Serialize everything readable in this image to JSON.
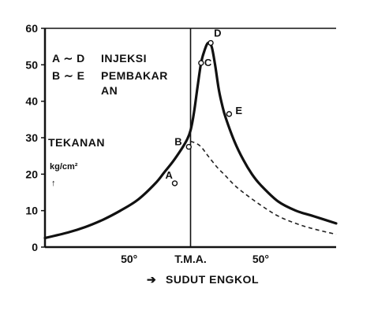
{
  "chart_data": {
    "type": "line",
    "ylim": [
      0,
      60
    ],
    "xlim": [
      -83,
      83
    ],
    "yticks": [
      0,
      10,
      20,
      30,
      40,
      50,
      60
    ],
    "xticks": [
      {
        "value": -35,
        "label": "50°"
      },
      {
        "value": 0,
        "label": "T.M.A."
      },
      {
        "value": 40,
        "label": "50°"
      }
    ],
    "xlabel": "SUDUT ENGKOL",
    "xlabel_arrow": "➔",
    "ylabel": "TEKANAN",
    "ylabel_unit": "kg/cm²",
    "ylabel_arrow": "↑",
    "reference_line_x": 0,
    "legend": [
      {
        "key": "A ∼ D",
        "text": "INJEKSI"
      },
      {
        "key": "B ∼ E",
        "text": "PEMBAKAR",
        "text2": "AN"
      }
    ],
    "series": [
      {
        "style": "solid",
        "x": [
          -83,
          -70,
          -60,
          -50,
          -40,
          -30,
          -20,
          -15,
          -10,
          -5,
          -2,
          0,
          2,
          4,
          6,
          8,
          10,
          12,
          14,
          16,
          18,
          20,
          25,
          30,
          35,
          40,
          50,
          60,
          70,
          83
        ],
        "y": [
          2.5,
          4,
          5.5,
          7.5,
          10,
          13,
          17.5,
          20.5,
          23.5,
          27,
          29.5,
          32,
          37,
          44,
          50.5,
          54,
          56,
          55,
          50,
          43.5,
          39,
          35.5,
          29,
          24,
          20,
          17,
          12.5,
          10,
          8.5,
          6.5
        ]
      },
      {
        "style": "dashed",
        "x": [
          0,
          3,
          6,
          10,
          15,
          20,
          25,
          30,
          40,
          50,
          60,
          70,
          83
        ],
        "y": [
          29,
          28.5,
          27.5,
          25,
          22,
          19.5,
          17,
          15,
          11.5,
          8.5,
          6.5,
          5,
          3.5
        ]
      }
    ],
    "points": [
      {
        "label": "A",
        "x": -9,
        "y": 17.5
      },
      {
        "label": "B",
        "x": -1,
        "y": 27.5
      },
      {
        "label": "C",
        "x": 6,
        "y": 50.5
      },
      {
        "label": "D",
        "x": 11.5,
        "y": 56
      },
      {
        "label": "E",
        "x": 22,
        "y": 36.5
      }
    ]
  }
}
